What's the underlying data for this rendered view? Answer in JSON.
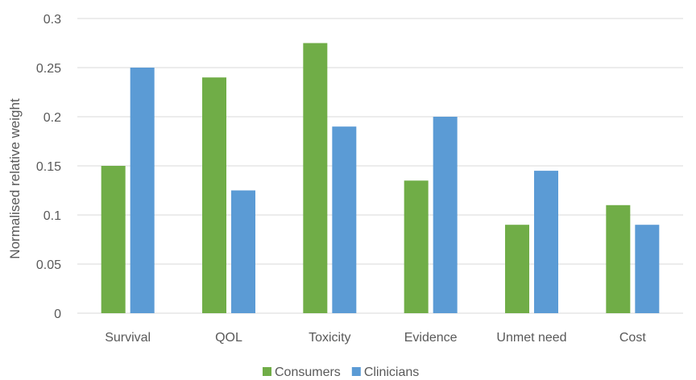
{
  "chart_data": {
    "type": "bar",
    "title": "",
    "xlabel": "",
    "ylabel": "Normalised relative weight",
    "categories": [
      "Survival",
      "QOL",
      "Toxicity",
      "Evidence",
      "Unmet need",
      "Cost"
    ],
    "series": [
      {
        "name": "Consumers",
        "color": "#70AD47",
        "values": [
          0.15,
          0.24,
          0.275,
          0.135,
          0.09,
          0.11
        ]
      },
      {
        "name": "Clinicians",
        "color": "#5B9BD5",
        "values": [
          0.25,
          0.125,
          0.19,
          0.2,
          0.145,
          0.09
        ]
      }
    ],
    "ylim": [
      0,
      0.3
    ],
    "yticks": [
      "0",
      "0.05",
      "0.1",
      "0.15",
      "0.2",
      "0.25",
      "0.3"
    ],
    "grid": true,
    "gridColor": "#D9D9D9",
    "legend": "bottom"
  }
}
